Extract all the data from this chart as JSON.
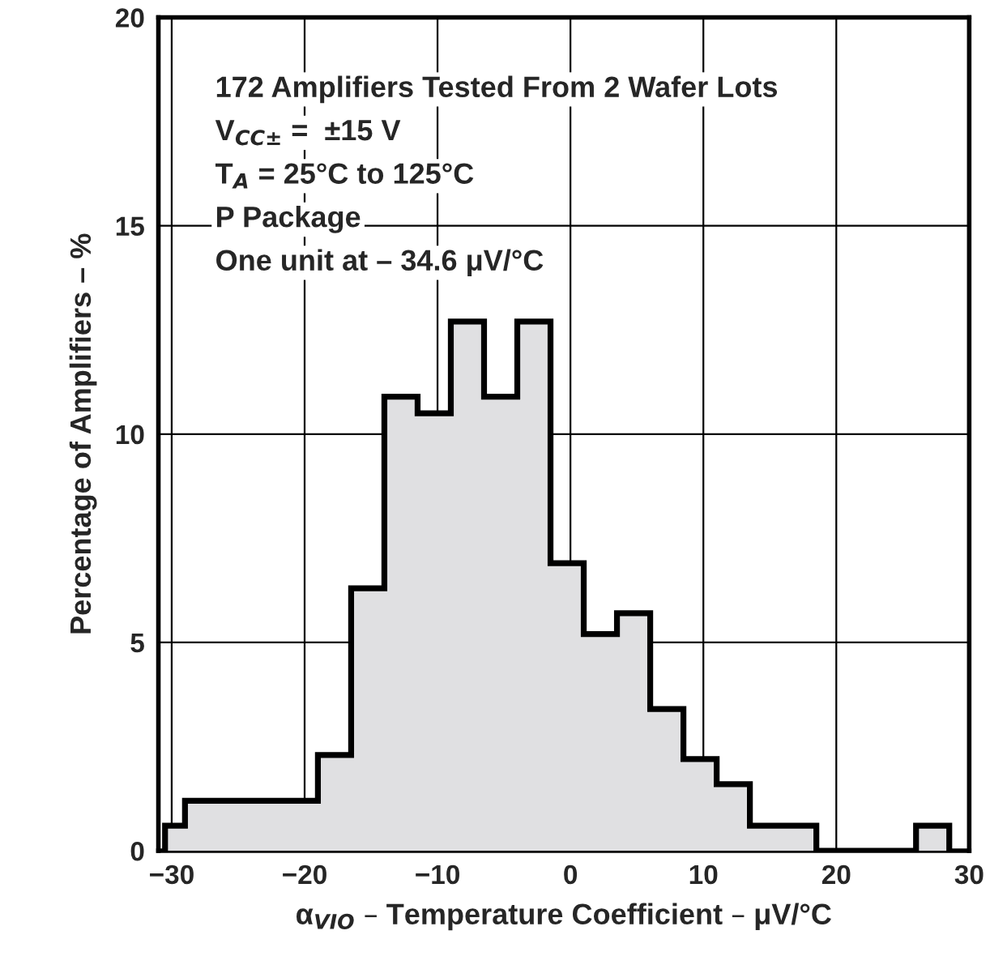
{
  "chart_data": {
    "type": "histogram",
    "xlabel": "α$_{VIO}$ – Temperature Coefficient – μV/°C",
    "ylabel": "Percentage of Amplifiers – %",
    "annotations": [
      "172 Amplifiers Tested From 2 Wafer Lots",
      "V$_{CC±}$ =  ±15 V",
      "T$_{A}$ = 25°C to 125°C",
      "P Package",
      "One unit at – 34.6 μV/°C"
    ],
    "bins": [
      -30.5,
      -29,
      -19,
      -16.5,
      -14,
      -11.5,
      -9,
      -6.5,
      -4,
      -1.5,
      1,
      3.5,
      6,
      8.5,
      11,
      13.5,
      18.5,
      26,
      28.5
    ],
    "values": [
      0.6,
      1.2,
      2.3,
      6.3,
      10.9,
      10.5,
      12.7,
      10.9,
      12.7,
      6.9,
      5.2,
      5.7,
      3.4,
      2.2,
      1.6,
      0.6,
      0,
      0.6
    ],
    "color": "#e0e0e2",
    "xlim": [
      -31,
      30
    ],
    "xticks": [
      -30,
      -20,
      -10,
      0,
      10,
      20,
      30
    ],
    "ylim": [
      0,
      20
    ],
    "yticks": [
      0,
      5,
      10,
      15,
      20
    ],
    "grid": true
  }
}
